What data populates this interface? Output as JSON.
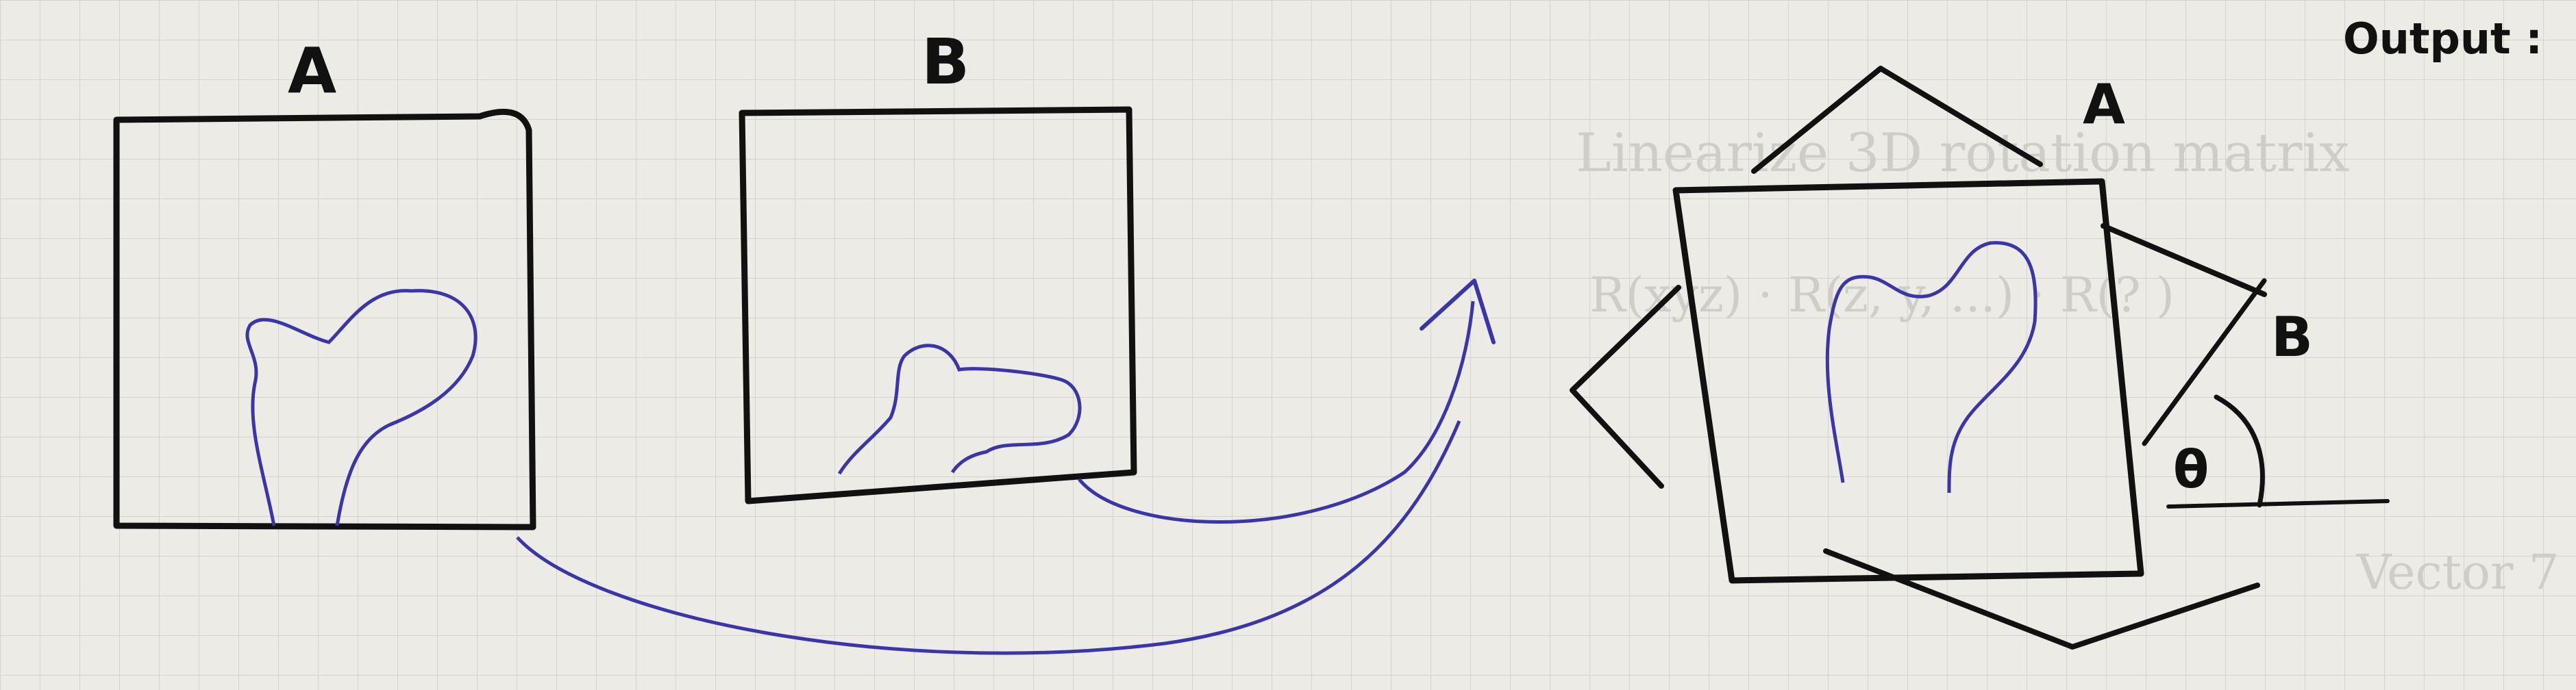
{
  "labels": {
    "panel_a": "A",
    "panel_b": "B",
    "output_title": "Output :",
    "output_a": "A",
    "output_b": "B",
    "angle": "θ"
  },
  "background_text": {
    "line1": "Linearize 3D rotation matrix",
    "line2": "R(xyz) · R(z, y, ...) · R(? )",
    "fragment": "Vector 7"
  },
  "colors": {
    "ink_black": "#111111",
    "ink_blue": "#3b36a8",
    "paper": "#ecebe6",
    "grid": "#d4d2cc",
    "faint_text": "#cfcdc7"
  }
}
